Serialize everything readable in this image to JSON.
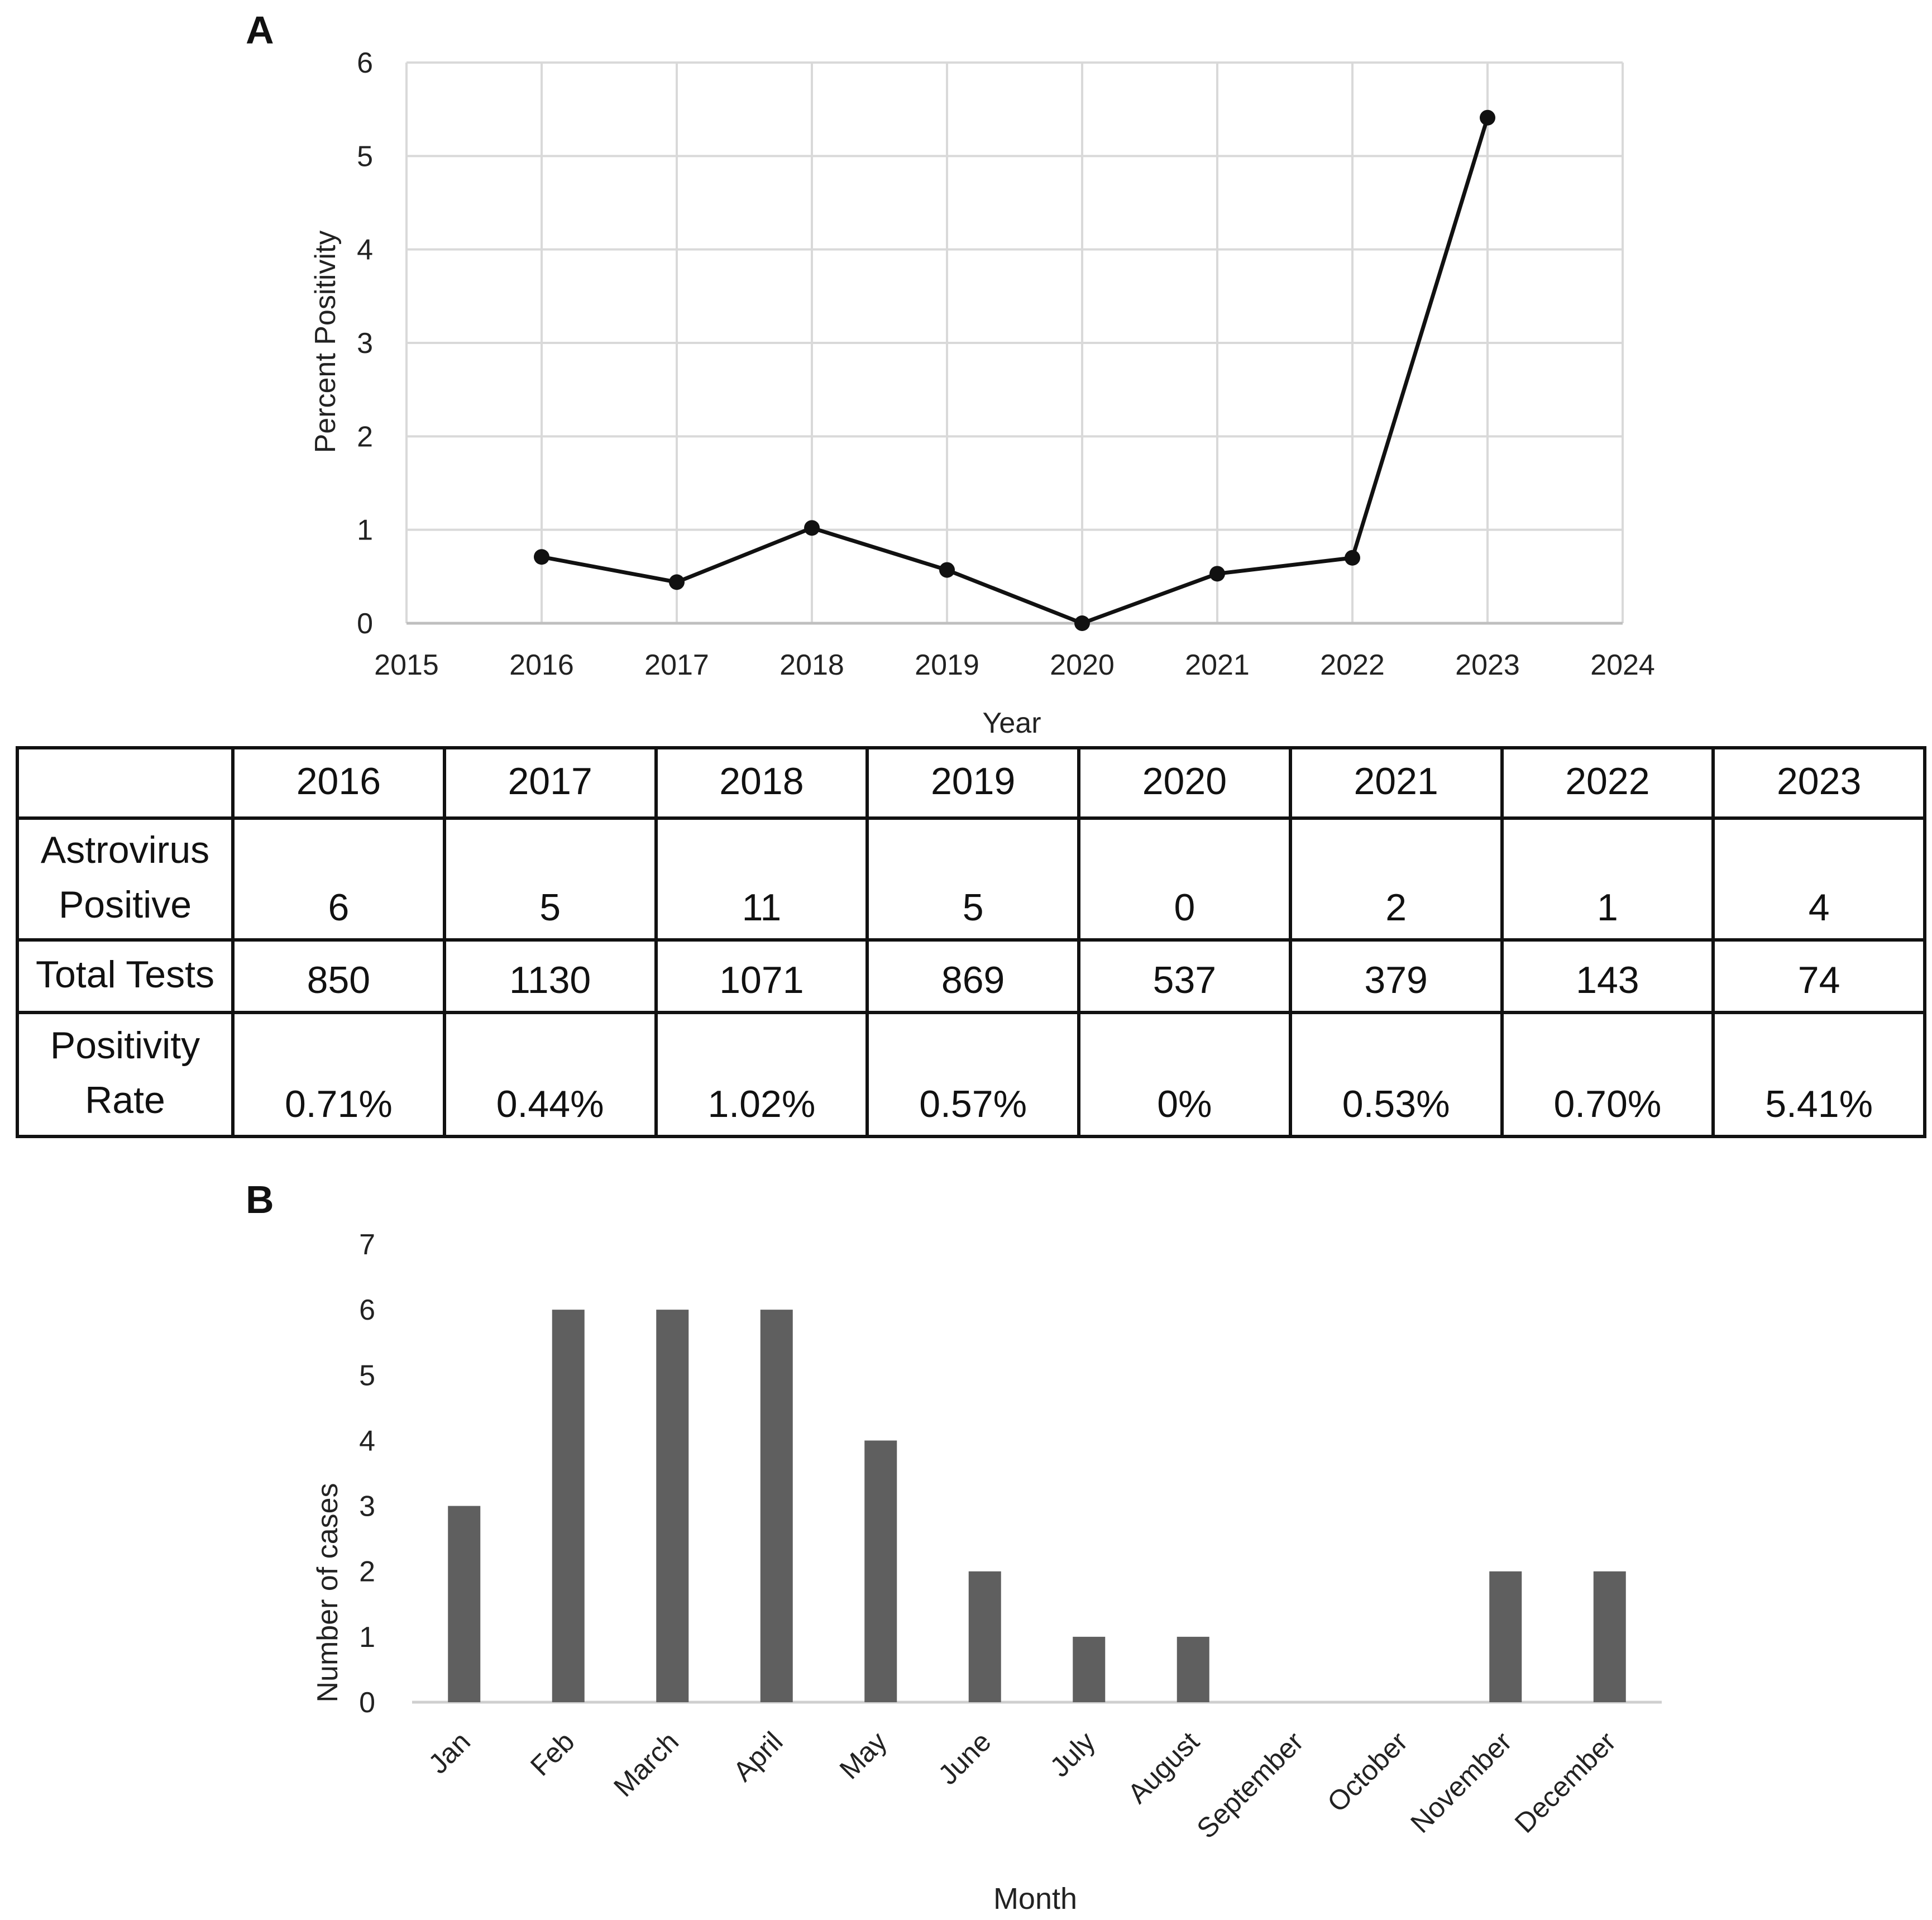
{
  "panel_a_label": "A",
  "panel_b_label": "B",
  "chart_data": [
    {
      "type": "line",
      "panel": "A",
      "title": "",
      "xlabel": "Year",
      "ylabel": "Percent Positivity",
      "xlim": [
        2015,
        2024
      ],
      "ylim": [
        0,
        6
      ],
      "xticks": [
        "2015",
        "2016",
        "2017",
        "2018",
        "2019",
        "2020",
        "2021",
        "2022",
        "2023",
        "2024"
      ],
      "yticks": [
        "0",
        "1",
        "2",
        "3",
        "4",
        "5",
        "6"
      ],
      "grid": true,
      "series": [
        {
          "name": "Percent Positivity",
          "x": [
            2016,
            2017,
            2018,
            2019,
            2020,
            2021,
            2022,
            2023
          ],
          "y": [
            0.71,
            0.44,
            1.02,
            0.57,
            0,
            0.53,
            0.7,
            5.41
          ],
          "color": "#111111"
        }
      ]
    },
    {
      "type": "bar",
      "panel": "B",
      "title": "",
      "xlabel": "Month",
      "ylabel": "Number of cases",
      "ylim": [
        0,
        7
      ],
      "yticks": [
        "0",
        "1",
        "2",
        "3",
        "4",
        "5",
        "6",
        "7"
      ],
      "grid": false,
      "categories": [
        "Jan",
        "Feb",
        "March",
        "April",
        "May",
        "June",
        "July",
        "August",
        "September",
        "October",
        "November",
        "December"
      ],
      "values": [
        3,
        6,
        6,
        6,
        4,
        2,
        1,
        1,
        0,
        0,
        2,
        2
      ],
      "color": "#5f5f5f"
    }
  ],
  "table": {
    "columns": [
      "2016",
      "2017",
      "2018",
      "2019",
      "2020",
      "2021",
      "2022",
      "2023"
    ],
    "rows": [
      {
        "label_lines": [
          "Astrovirus",
          "Positive"
        ],
        "values": [
          "6",
          "5",
          "11",
          "5",
          "0",
          "2",
          "1",
          "4"
        ]
      },
      {
        "label_lines": [
          "Total Tests"
        ],
        "values": [
          "850",
          "1130",
          "1071",
          "869",
          "537",
          "379",
          "143",
          "74"
        ]
      },
      {
        "label_lines": [
          "Positivity",
          "Rate"
        ],
        "values": [
          "0.71%",
          "0.44%",
          "1.02%",
          "0.57%",
          "0%",
          "0.53%",
          "0.70%",
          "5.41%"
        ]
      }
    ]
  }
}
